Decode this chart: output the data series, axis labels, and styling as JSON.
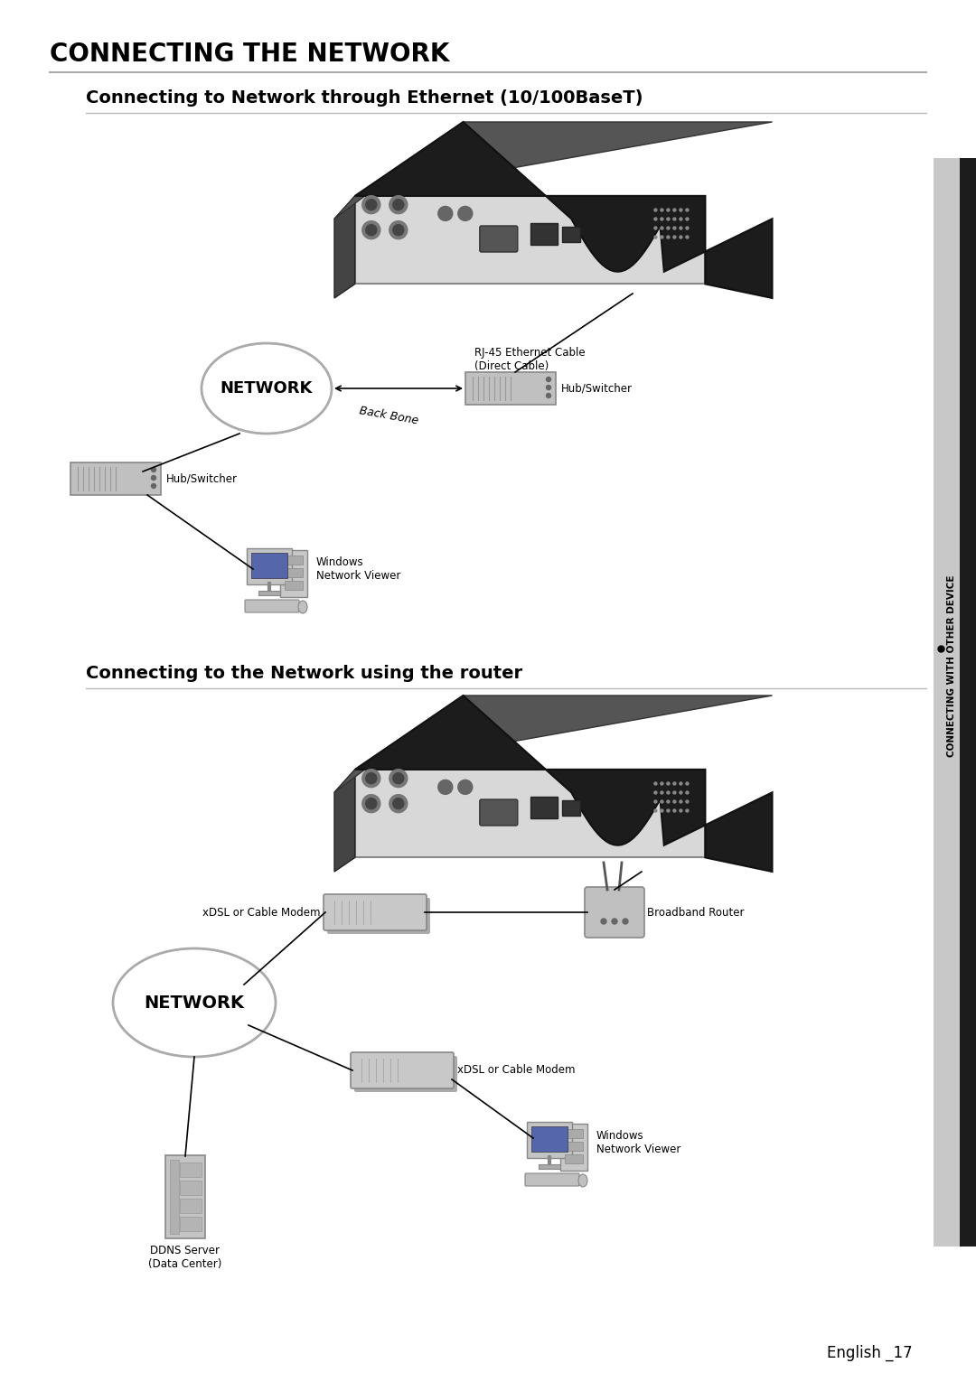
{
  "title_main": "CONNECTING THE NETWORK",
  "section1_title": "Connecting to Network through Ethernet (10/100BaseT)",
  "section2_title": "Connecting to the Network using the router",
  "sidebar_text": "CONNECTING WITH OTHER DEVICE",
  "footer_text": "English _17",
  "bg_color": "#ffffff",
  "title_color": "#000000",
  "label_rj45": "RJ-45 Ethernet Cable\n(Direct Cable)",
  "label_backbone": "Back Bone",
  "label_hub_r1": "Hub/Switcher",
  "label_hub_l1": "Hub/Switcher",
  "label_windows1": "Windows\nNetwork Viewer",
  "label_network1": "NETWORK",
  "label_xdsl_top": "xDSL or Cable Modem",
  "label_broadband": "Broadband Router",
  "label_xdsl_bot": "xDSL or Cable Modem",
  "label_windows2": "Windows\nNetwork Viewer",
  "label_ddns": "DDNS Server\n(Data Center)",
  "label_network2": "NETWORK",
  "sidebar_gray": "#c8c8c8",
  "sidebar_dark": "#1c1c1c"
}
